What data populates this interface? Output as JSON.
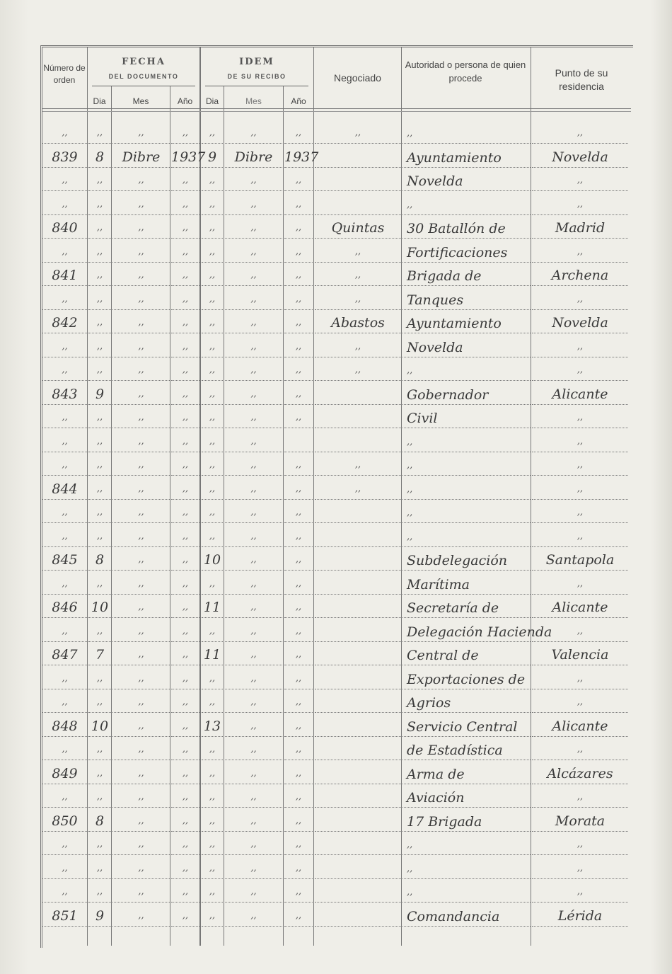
{
  "header": {
    "numero": "Número de orden",
    "fecha_title": "FECHA",
    "fecha_sub": "DEL DOCUMENTO",
    "idem_title": "IDEM",
    "idem_sub": "DE SU RECIBO",
    "dia": "Dia",
    "mes": "Mes",
    "ano": "Año",
    "negociado": "Negociado",
    "autoridad": "Autoridad o persona de quien procede",
    "punto": "Punto de su residencia"
  },
  "rows": [
    [
      ",,",
      ",,",
      ",,",
      ",,",
      ",,",
      ",,",
      ",,",
      ",,",
      ",,",
      ",,"
    ],
    [
      "839",
      "8",
      "Dibre",
      "1937",
      "9",
      "Dibre",
      "1937",
      "",
      "Ayuntamiento",
      "Novelda"
    ],
    [
      ",,",
      ",,",
      ",,",
      ",,",
      ",,",
      ",,",
      ",,",
      "",
      "Novelda",
      ",,"
    ],
    [
      ",,",
      ",,",
      ",,",
      ",,",
      ",,",
      ",,",
      ",,",
      "",
      ",,",
      ",,"
    ],
    [
      "840",
      ",,",
      ",,",
      ",,",
      ",,",
      ",,",
      ",,",
      "Quintas",
      "30 Batallón de",
      "Madrid"
    ],
    [
      ",,",
      ",,",
      ",,",
      ",,",
      ",,",
      ",,",
      ",,",
      ",,",
      "Fortificaciones",
      ",,"
    ],
    [
      "841",
      ",,",
      ",,",
      ",,",
      ",,",
      ",,",
      ",,",
      ",,",
      "Brigada de",
      "Archena"
    ],
    [
      ",,",
      ",,",
      ",,",
      ",,",
      ",,",
      ",,",
      ",,",
      ",,",
      "Tanques",
      ",,"
    ],
    [
      "842",
      ",,",
      ",,",
      ",,",
      ",,",
      ",,",
      ",,",
      "Abastos",
      "Ayuntamiento",
      "Novelda"
    ],
    [
      ",,",
      ",,",
      ",,",
      ",,",
      ",,",
      ",,",
      ",,",
      ",,",
      "Novelda",
      ",,"
    ],
    [
      ",,",
      ",,",
      ",,",
      ",,",
      ",,",
      ",,",
      ",,",
      ",,",
      ",,",
      ",,"
    ],
    [
      "843",
      "9",
      ",,",
      ",,",
      ",,",
      ",,",
      ",,",
      "",
      "Gobernador",
      "Alicante"
    ],
    [
      ",,",
      ",,",
      ",,",
      ",,",
      ",,",
      ",,",
      ",,",
      "",
      "Civil",
      ",,"
    ],
    [
      ",,",
      ",,",
      ",,",
      ",,",
      ",,",
      ",,",
      "",
      "",
      ",,",
      ",,"
    ],
    [
      ",,",
      ",,",
      ",,",
      ",,",
      ",,",
      ",,",
      ",,",
      ",,",
      ",,",
      ",,"
    ],
    [
      "844",
      ",,",
      ",,",
      ",,",
      ",,",
      ",,",
      ",,",
      ",,",
      ",,",
      ",,"
    ],
    [
      ",,",
      ",,",
      ",,",
      ",,",
      ",,",
      ",,",
      ",,",
      "",
      ",,",
      ",,"
    ],
    [
      ",,",
      ",,",
      ",,",
      ",,",
      ",,",
      ",,",
      ",,",
      "",
      ",,",
      ",,"
    ],
    [
      "845",
      "8",
      ",,",
      ",,",
      "10",
      ",,",
      ",,",
      "",
      "Subdelegación",
      "Santapola"
    ],
    [
      ",,",
      ",,",
      ",,",
      ",,",
      ",,",
      ",,",
      ",,",
      "",
      "Marítima",
      ",,"
    ],
    [
      "846",
      "10",
      ",,",
      ",,",
      "11",
      ",,",
      ",,",
      "",
      "Secretaría de",
      "Alicante"
    ],
    [
      ",,",
      ",,",
      ",,",
      ",,",
      ",,",
      ",,",
      ",,",
      "",
      "Delegación Hacienda",
      ",,"
    ],
    [
      "847",
      "7",
      ",,",
      ",,",
      "11",
      ",,",
      ",,",
      "",
      "Central de",
      "Valencia"
    ],
    [
      ",,",
      ",,",
      ",,",
      ",,",
      ",,",
      ",,",
      ",,",
      "",
      "Exportaciones de",
      ",,"
    ],
    [
      ",,",
      ",,",
      ",,",
      ",,",
      ",,",
      ",,",
      ",,",
      "",
      "Agrios",
      ",,"
    ],
    [
      "848",
      "10",
      ",,",
      ",,",
      "13",
      ",,",
      ",,",
      "",
      "Servicio Central",
      "Alicante"
    ],
    [
      ",,",
      ",,",
      ",,",
      ",,",
      ",,",
      ",,",
      ",,",
      "",
      "de Estadística",
      ",,"
    ],
    [
      "849",
      ",,",
      ",,",
      ",,",
      ",,",
      ",,",
      ",,",
      "",
      "Arma de",
      "Alcázares"
    ],
    [
      ",,",
      ",,",
      ",,",
      ",,",
      ",,",
      ",,",
      ",,",
      "",
      "Aviación",
      ",,"
    ],
    [
      "850",
      "8",
      ",,",
      ",,",
      ",,",
      ",,",
      ",,",
      "",
      "17 Brigada",
      "Morata"
    ],
    [
      ",,",
      ",,",
      ",,",
      ",,",
      ",,",
      ",,",
      ",,",
      "",
      ",,",
      ",,"
    ],
    [
      ",,",
      ",,",
      ",,",
      ",,",
      ",,",
      ",,",
      ",,",
      "",
      ",,",
      ",,"
    ],
    [
      ",,",
      ",,",
      ",,",
      ",,",
      ",,",
      ",,",
      ",,",
      "",
      ",,",
      ",,"
    ],
    [
      "851",
      "9",
      ",,",
      ",,",
      ",,",
      ",,",
      ",,",
      "",
      "Comandancia",
      "Lérida"
    ]
  ]
}
